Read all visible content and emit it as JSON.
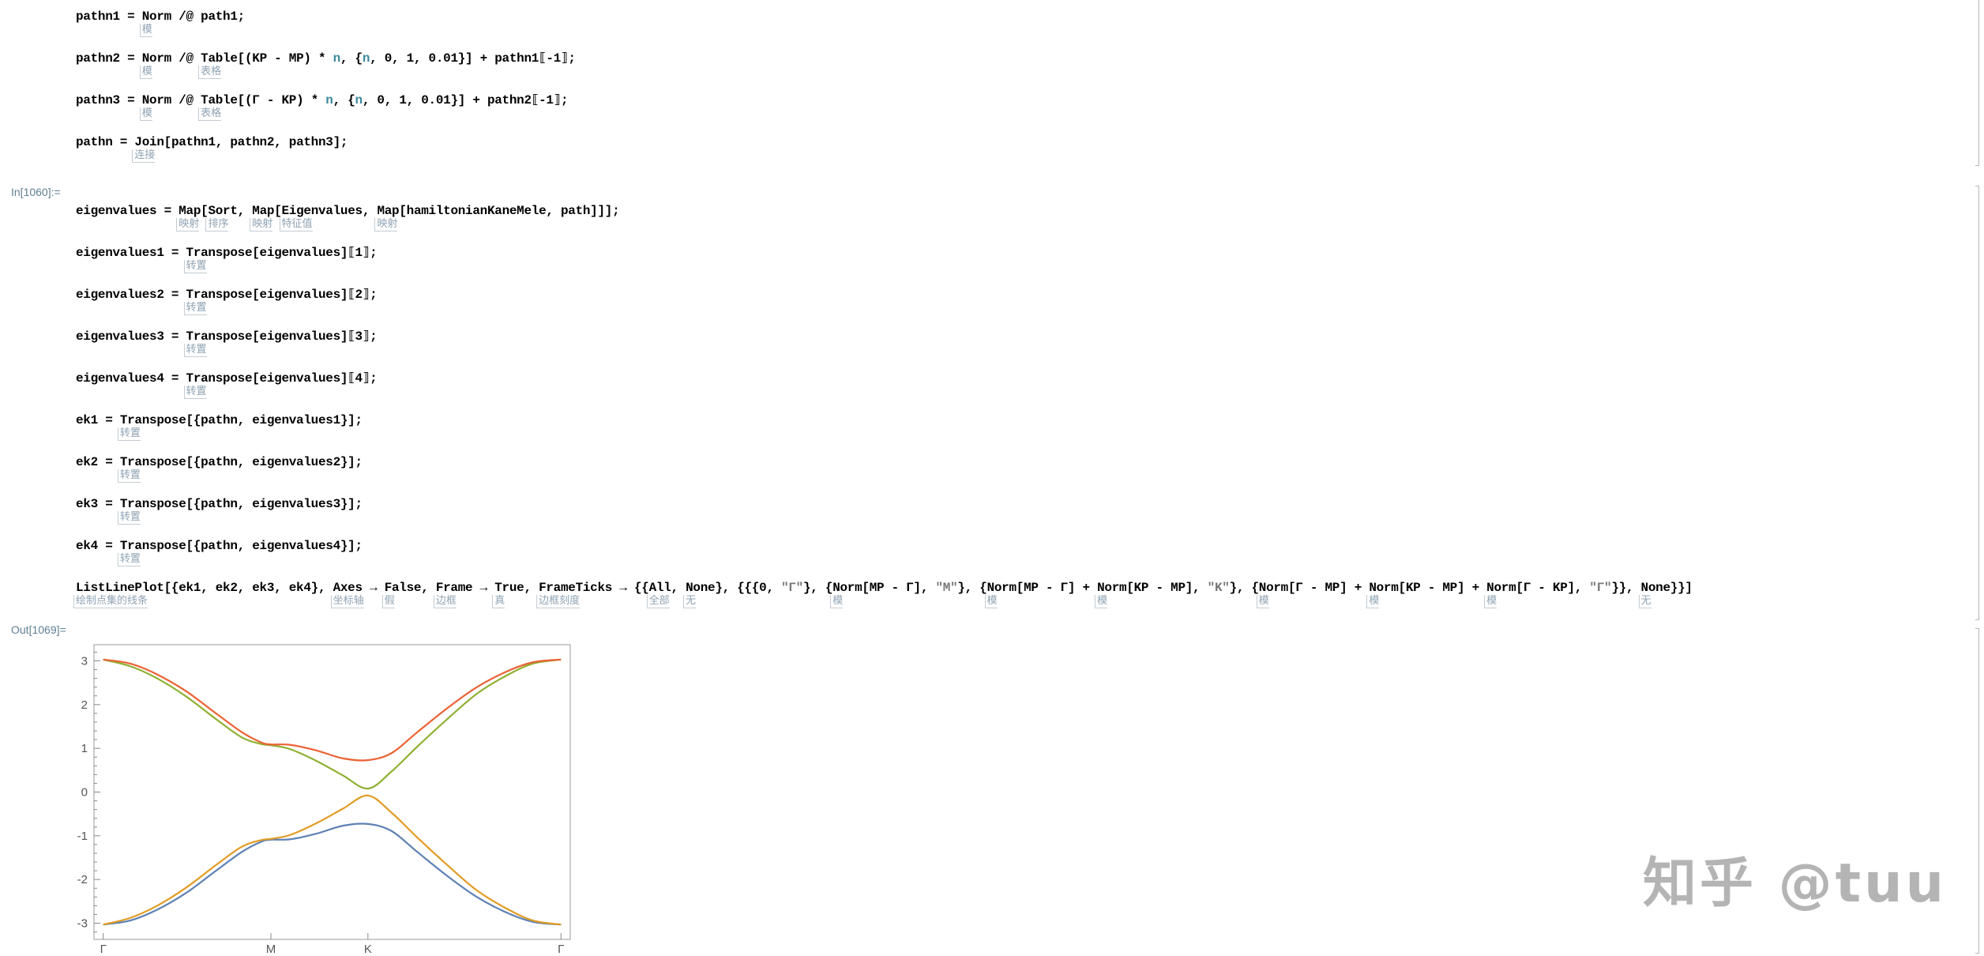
{
  "cell1": {
    "lines": [
      [
        "pathn1 = ",
        {
          "t": "Norm",
          "n": "模"
        },
        " /@ path1;"
      ],
      [
        "pathn2 = ",
        {
          "t": "Norm",
          "n": "模"
        },
        " /@ ",
        {
          "t": "Table",
          "n": "表格"
        },
        "[(KP - MP) * ",
        {
          "t": "n",
          "c": "var"
        },
        ", {",
        {
          "t": "n",
          "c": "var"
        },
        ", 0, 1, 0.01}] + pathn1⟦-1⟧;"
      ],
      [
        "pathn3 = ",
        {
          "t": "Norm",
          "n": "模"
        },
        " /@ ",
        {
          "t": "Table",
          "n": "表格"
        },
        "[(Γ - KP) * ",
        {
          "t": "n",
          "c": "var"
        },
        ", {",
        {
          "t": "n",
          "c": "var"
        },
        ", 0, 1, 0.01}] + pathn2⟦-1⟧;"
      ],
      [
        "pathn = ",
        {
          "t": "Join",
          "n": "连接"
        },
        "[pathn1, pathn2, pathn3];"
      ]
    ]
  },
  "input_label": "In[1060]:=",
  "cell2": {
    "lines": [
      [
        "eigenvalues = ",
        {
          "t": "Map",
          "n": "映射"
        },
        "[",
        {
          "t": "Sort",
          "n": "排序"
        },
        ", ",
        {
          "t": "Map",
          "n": "映射"
        },
        "[",
        {
          "t": "Eigenvalues",
          "n": "特征值"
        },
        ", ",
        {
          "t": "Map",
          "n": "映射"
        },
        "[hamiltonianKaneMele, path]]];"
      ],
      [
        "eigenvalues1 = ",
        {
          "t": "Transpose",
          "n": "转置"
        },
        "[eigenvalues]⟦1⟧;"
      ],
      [
        "eigenvalues2 = ",
        {
          "t": "Transpose",
          "n": "转置"
        },
        "[eigenvalues]⟦2⟧;"
      ],
      [
        "eigenvalues3 = ",
        {
          "t": "Transpose",
          "n": "转置"
        },
        "[eigenvalues]⟦3⟧;"
      ],
      [
        "eigenvalues4 = ",
        {
          "t": "Transpose",
          "n": "转置"
        },
        "[eigenvalues]⟦4⟧;"
      ],
      [
        "ek1 = ",
        {
          "t": "Transpose",
          "n": "转置"
        },
        "[{pathn, eigenvalues1}];"
      ],
      [
        "ek2 = ",
        {
          "t": "Transpose",
          "n": "转置"
        },
        "[{pathn, eigenvalues2}];"
      ],
      [
        "ek3 = ",
        {
          "t": "Transpose",
          "n": "转置"
        },
        "[{pathn, eigenvalues3}];"
      ],
      [
        "ek4 = ",
        {
          "t": "Transpose",
          "n": "转置"
        },
        "[{pathn, eigenvalues4}];"
      ],
      [
        {
          "t": "ListLinePlot",
          "n": "绘制点集的线条"
        },
        "[{ek1, ek2, ek3, ek4}, ",
        {
          "t": "Axes",
          "n": "坐标轴"
        },
        " → ",
        {
          "t": "False",
          "n": "假"
        },
        ", ",
        {
          "t": "Frame",
          "n": "边框"
        },
        " → ",
        {
          "t": "True",
          "n": "真"
        },
        ", ",
        {
          "t": "FrameTicks",
          "n": "边框刻度"
        },
        " → {{",
        {
          "t": "All",
          "n": "全部"
        },
        ", ",
        {
          "t": "None",
          "n": "无"
        },
        "}, {{{0, ",
        {
          "t": "\"Γ\"",
          "c": "str"
        },
        "}, {",
        {
          "t": "Norm",
          "n": "模"
        },
        "[MP - Γ], ",
        {
          "t": "\"M\"",
          "c": "str"
        },
        "}, {",
        {
          "t": "Norm",
          "n": "模"
        },
        "[MP - Γ] + ",
        {
          "t": "Norm",
          "n": "模"
        },
        "[KP - MP], ",
        {
          "t": "\"K\"",
          "c": "str"
        },
        "}, {",
        {
          "t": "Norm",
          "n": "模"
        },
        "[Γ - MP] + ",
        {
          "t": "Norm",
          "n": "模"
        },
        "[KP - MP] + ",
        {
          "t": "Norm",
          "n": "模"
        },
        "[Γ - KP], ",
        {
          "t": "\"Γ\"",
          "c": "str"
        },
        "}}, ",
        {
          "t": "None",
          "n": "无"
        },
        "}}]"
      ]
    ]
  },
  "output_label": "Out[1069]=",
  "watermark": "知乎 @tuu",
  "chart_data": {
    "type": "line",
    "title": "",
    "xlabel": "",
    "ylabel": "",
    "frame": true,
    "axes": false,
    "grid": false,
    "xlim": [
      -0.2,
      10.11
    ],
    "ylim": [
      -3.37,
      3.37
    ],
    "x_ticks": [
      {
        "value": 0,
        "label": "Γ"
      },
      {
        "value": 3.63,
        "label": "M"
      },
      {
        "value": 5.73,
        "label": "K"
      },
      {
        "value": 9.91,
        "label": "Γ"
      }
    ],
    "y_ticks": [
      -3,
      -2,
      -1,
      0,
      1,
      2,
      3
    ],
    "x": [
      0,
      0.58,
      1.15,
      1.79,
      2.44,
      3.0,
      3.41,
      3.63,
      4.05,
      4.62,
      5.19,
      5.73,
      6.24,
      6.8,
      7.45,
      8.09,
      8.74,
      9.31,
      9.91
    ],
    "series": [
      {
        "color": "#5E81B5",
        "values": [
          -3.03,
          -2.94,
          -2.7,
          -2.31,
          -1.8,
          -1.37,
          -1.14,
          -1.09,
          -1.08,
          -0.95,
          -0.77,
          -0.73,
          -0.89,
          -1.37,
          -1.92,
          -2.4,
          -2.76,
          -2.97,
          -3.03
        ]
      },
      {
        "color": "#E19C24",
        "values": [
          -3.03,
          -2.88,
          -2.61,
          -2.19,
          -1.67,
          -1.25,
          -1.1,
          -1.07,
          -0.98,
          -0.71,
          -0.38,
          -0.08,
          -0.47,
          -1.04,
          -1.67,
          -2.25,
          -2.67,
          -2.94,
          -3.03
        ]
      },
      {
        "color": "#8FB032",
        "values": [
          3.03,
          2.88,
          2.61,
          2.19,
          1.67,
          1.25,
          1.1,
          1.07,
          0.98,
          0.71,
          0.38,
          0.08,
          0.47,
          1.04,
          1.67,
          2.25,
          2.67,
          2.94,
          3.03
        ]
      },
      {
        "color": "#EB6235",
        "values": [
          3.03,
          2.94,
          2.7,
          2.31,
          1.8,
          1.37,
          1.14,
          1.09,
          1.08,
          0.95,
          0.77,
          0.73,
          0.89,
          1.37,
          1.92,
          2.4,
          2.76,
          2.97,
          3.03
        ]
      }
    ]
  }
}
